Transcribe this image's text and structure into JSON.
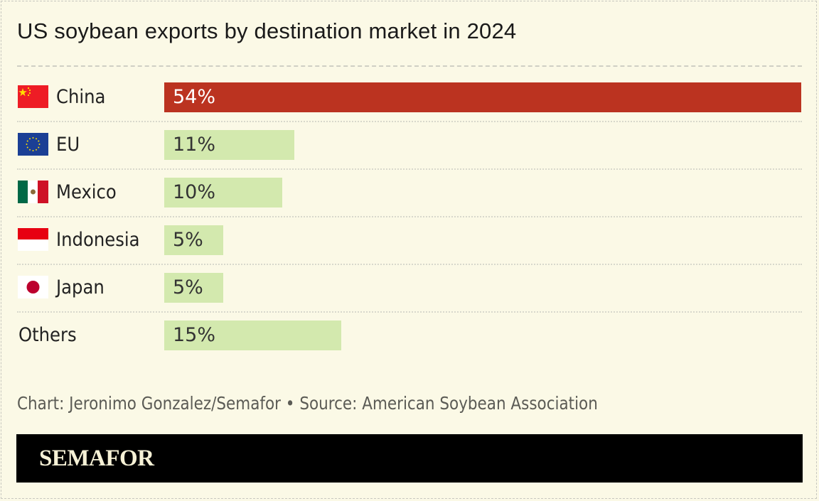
{
  "title": "US soybean exports by destination market in 2024",
  "chart_data": {
    "type": "bar",
    "orientation": "horizontal",
    "title": "US soybean exports by destination market in 2024",
    "categories": [
      "China",
      "EU",
      "Mexico",
      "Indonesia",
      "Japan",
      "Others"
    ],
    "values": [
      54,
      11,
      10,
      5,
      5,
      15
    ],
    "value_labels": [
      "54%",
      "11%",
      "10%",
      "5%",
      "5%",
      "15%"
    ],
    "flags": [
      "china-flag",
      "eu-flag",
      "mexico-flag",
      "indonesia-flag",
      "japan-flag",
      null
    ],
    "unit": "%",
    "xlim": [
      0,
      54
    ],
    "colors": {
      "highlight": "#bb3320",
      "default": "#d3e9ae",
      "highlight_text": "#ffffff",
      "default_text": "#333333"
    },
    "highlight_index": 0,
    "grid": false
  },
  "footer": "Chart: Jeronimo Gonzalez/Semafor • Source: American Soybean Association",
  "brand": "SEMAFOR"
}
